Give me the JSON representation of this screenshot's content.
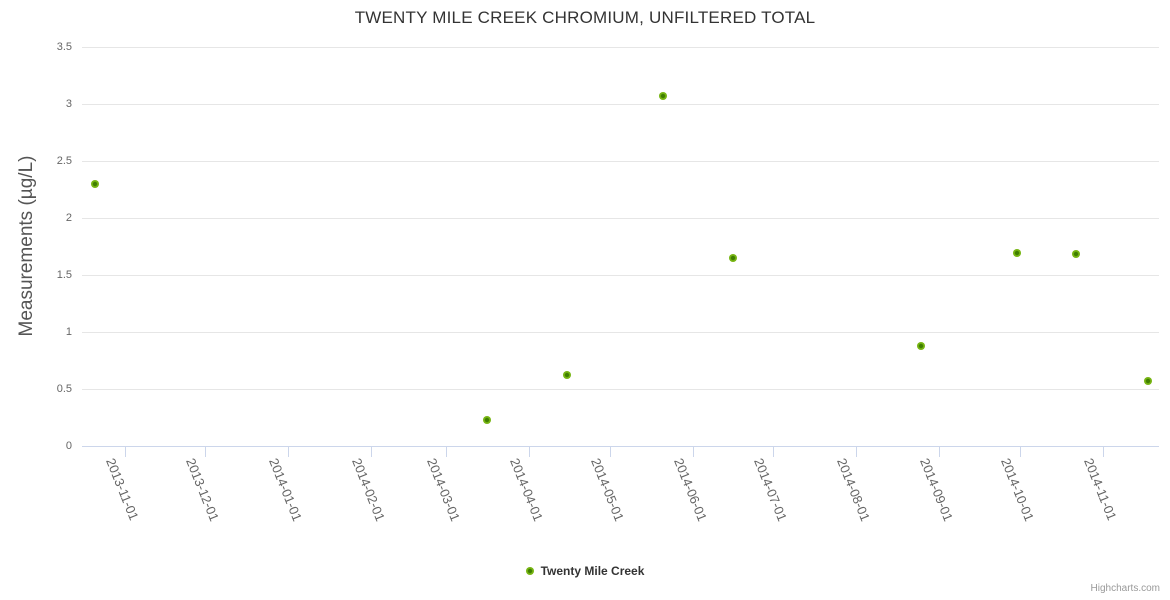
{
  "chart_data": {
    "type": "scatter",
    "title": "TWENTY MILE CREEK CHROMIUM, UNFILTERED TOTAL",
    "xlabel": "",
    "ylabel": "Measurements (µg/L)",
    "ylim": [
      0,
      3.5
    ],
    "y_ticks": [
      0,
      0.5,
      1,
      1.5,
      2,
      2.5,
      3,
      3.5
    ],
    "x_ticks": [
      "2013-11-01",
      "2013-12-01",
      "2014-01-01",
      "2014-02-01",
      "2014-03-01",
      "2014-04-01",
      "2014-05-01",
      "2014-06-01",
      "2014-07-01",
      "2014-08-01",
      "2014-09-01",
      "2014-10-01",
      "2014-11-01"
    ],
    "x_range": [
      "2013-10-16",
      "2014-11-22"
    ],
    "grid": true,
    "legend_position": "bottom-center",
    "series": [
      {
        "name": "Twenty Mile Creek",
        "points": [
          {
            "date": "2013-10-21",
            "value": 2.3
          },
          {
            "date": "2014-03-16",
            "value": 0.23
          },
          {
            "date": "2014-04-15",
            "value": 0.62
          },
          {
            "date": "2014-05-21",
            "value": 3.07
          },
          {
            "date": "2014-06-16",
            "value": 1.65
          },
          {
            "date": "2014-08-25",
            "value": 0.88
          },
          {
            "date": "2014-09-30",
            "value": 1.69
          },
          {
            "date": "2014-10-22",
            "value": 1.68
          },
          {
            "date": "2014-11-18",
            "value": 0.57
          }
        ]
      }
    ]
  },
  "legend": {
    "items": [
      "Twenty Mile Creek"
    ]
  },
  "credits": {
    "label": "Highcharts.com"
  },
  "colors": {
    "marker_outer": "#77b513",
    "marker_core": "#3f7e00",
    "grid": "#e6e6e6",
    "axis_line": "#ccd6eb",
    "title_text": "#333333",
    "axis_text": "#666666",
    "credits_text": "#999999"
  }
}
